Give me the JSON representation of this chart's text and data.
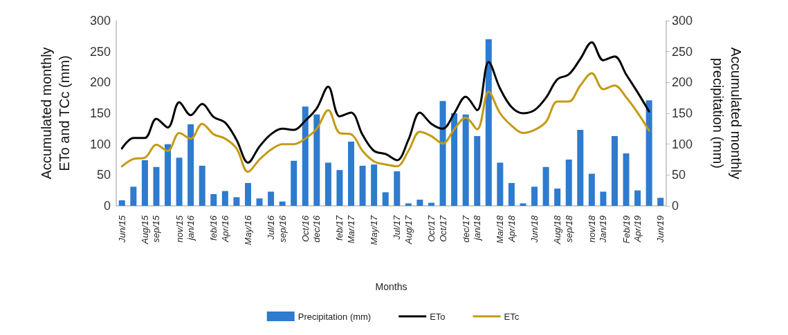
{
  "chart_data": {
    "type": "bar",
    "xlabel": "Months",
    "ylabel": "Accumulated monthly ETo and TCc (mm)",
    "y2label": "Accumulated monthly precipitation (mm)",
    "categories": [
      "Jun/15",
      null,
      "Aug/15",
      "sep/15",
      null,
      "nov/15",
      "jan/16",
      null,
      "feb/16",
      "Apr/16",
      null,
      "May/16",
      null,
      "Jul/16",
      "sep/16",
      null,
      "Oct/16",
      "dec/16",
      null,
      "feb/17",
      "Mar/17",
      null,
      "May/17",
      null,
      "Jul/17",
      "Aug/17",
      null,
      "Oct/17",
      "Oct/17",
      null,
      "dec/17",
      "jan/18",
      null,
      "Mar/18",
      "Apr/18",
      null,
      "Jun/18",
      null,
      "Aug/18",
      "sep/18",
      null,
      "nov/18",
      "Jan/19",
      null,
      "Feb/19",
      "Apr/19",
      null,
      "Jun/19"
    ],
    "series": [
      {
        "name": "Precipitation (mm)",
        "axis": "y2",
        "color": "#2e7bcf",
        "values": [
          9,
          31,
          74,
          63,
          100,
          78,
          132,
          65,
          19,
          24,
          14,
          37,
          12,
          23,
          7,
          73,
          161,
          148,
          70,
          58,
          104,
          65,
          67,
          22,
          56,
          4,
          10,
          5,
          170,
          150,
          148,
          113,
          270,
          70,
          37,
          4,
          31,
          63,
          28,
          75,
          123,
          52,
          23,
          113,
          85,
          25,
          171,
          13
        ]
      },
      {
        "name": "ETo",
        "type": "line",
        "color": "#000000",
        "values": [
          93,
          110,
          110,
          141,
          127,
          168,
          147,
          165,
          144,
          135,
          107,
          70,
          96,
          116,
          125,
          123,
          138,
          158,
          193,
          145,
          151,
          115,
          89,
          84,
          74,
          107,
          151,
          133,
          125,
          150,
          177,
          155,
          233,
          190,
          160,
          150,
          155,
          175,
          205,
          213,
          238,
          265,
          236,
          242,
          213,
          184,
          153,
          null
        ]
      },
      {
        "name": "ETc",
        "type": "line",
        "color": "#c49a14",
        "values": [
          64,
          76,
          78,
          99,
          89,
          118,
          109,
          133,
          116,
          109,
          93,
          55,
          75,
          91,
          100,
          100,
          109,
          125,
          155,
          118,
          116,
          89,
          72,
          67,
          64,
          89,
          120,
          113,
          101,
          124,
          143,
          124,
          185,
          150,
          130,
          118,
          123,
          136,
          169,
          169,
          195,
          215,
          189,
          195,
          176,
          151,
          122,
          null
        ]
      }
    ],
    "ylim": [
      0,
      300
    ],
    "yticks": [
      0,
      50,
      100,
      150,
      200,
      250,
      300
    ],
    "y2lim": [
      0,
      300
    ],
    "y2ticks": [
      0,
      50,
      100,
      150,
      200,
      250,
      300
    ],
    "legend": "bottom",
    "grid": false,
    "marker": "none"
  }
}
